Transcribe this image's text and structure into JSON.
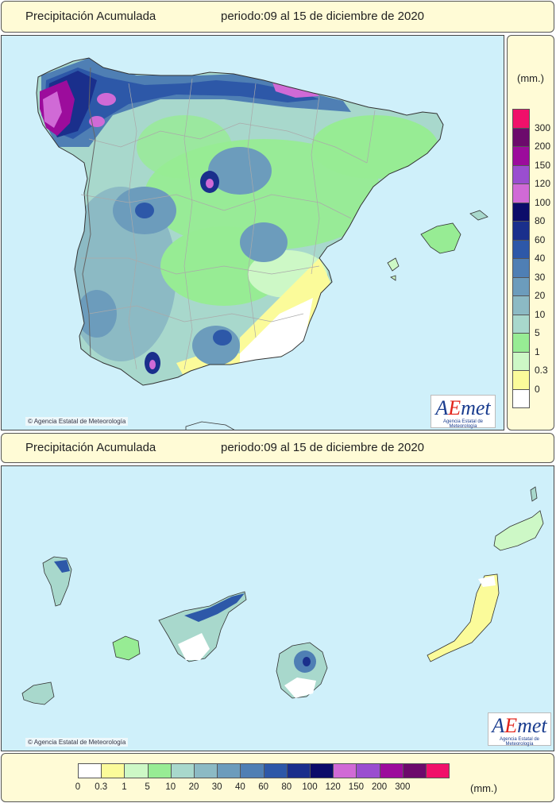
{
  "top_title": {
    "label": "Precipitación Acumulada",
    "period": "periodo:09 al 15 de diciembre de 2020"
  },
  "bottom_title": {
    "label": "Precipitación Acumulada",
    "period": "periodo:09 al 15 de diciembre de 2020"
  },
  "copyright": "Agencia Estatal de Meteorología",
  "logo": {
    "text_a": "A",
    "text_e": "E",
    "text_rest": "met",
    "subtitle": "Agencia Estatal de Meteorología"
  },
  "legend": {
    "unit": "(mm.)",
    "classes": [
      {
        "label": "0",
        "color": "#ffffff"
      },
      {
        "label": "0.3",
        "color": "#fbfb9a"
      },
      {
        "label": "1",
        "color": "#cdf8c6"
      },
      {
        "label": "5",
        "color": "#97ec94"
      },
      {
        "label": "10",
        "color": "#a8d8cc"
      },
      {
        "label": "20",
        "color": "#8cbac4"
      },
      {
        "label": "30",
        "color": "#6c9cbc"
      },
      {
        "label": "40",
        "color": "#4f7fb4"
      },
      {
        "label": "60",
        "color": "#2d58a8"
      },
      {
        "label": "80",
        "color": "#1a2f8c"
      },
      {
        "label": "100",
        "color": "#0c0c6a"
      },
      {
        "label": "120",
        "color": "#d06ad6"
      },
      {
        "label": "150",
        "color": "#9a4ed0"
      },
      {
        "label": "200",
        "color": "#9c0c9c"
      },
      {
        "label": "300",
        "color": "#6c0a6c"
      },
      {
        "label": "",
        "color": "#f0106a"
      }
    ]
  },
  "map_colors": {
    "sea": "#cff0fa",
    "land_default": "#a8d8cc",
    "border": "#aaaaaa",
    "coast": "#333333"
  }
}
